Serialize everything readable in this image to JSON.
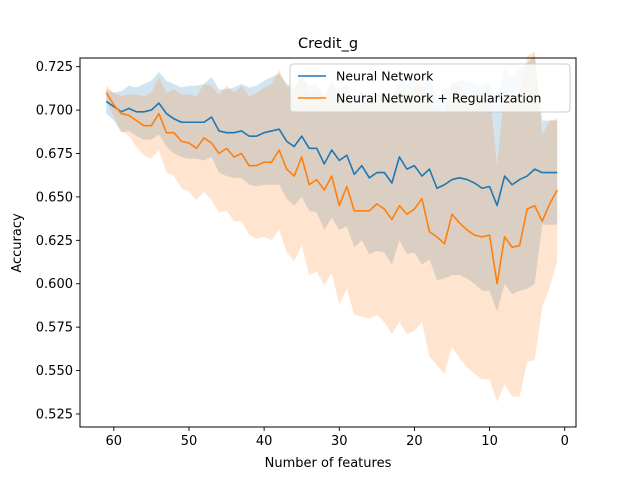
{
  "chart_data": {
    "type": "line",
    "title": "Credit_g",
    "xlabel": "Number of features",
    "ylabel": "Accuracy",
    "xlim": [
      64.5,
      -1.5
    ],
    "ylim": [
      0.5175,
      0.73
    ],
    "x_ticks": [
      60,
      50,
      40,
      30,
      20,
      10,
      0
    ],
    "y_ticks": [
      0.525,
      0.55,
      0.575,
      0.6,
      0.625,
      0.65,
      0.675,
      0.7,
      0.725
    ],
    "y_tick_labels": [
      "0.525",
      "0.550",
      "0.575",
      "0.600",
      "0.625",
      "0.650",
      "0.675",
      "0.700",
      "0.725"
    ],
    "legend_position": "upper-right",
    "grid": false,
    "x": [
      61,
      60,
      59,
      58,
      57,
      56,
      55,
      54,
      53,
      52,
      51,
      50,
      49,
      48,
      47,
      46,
      45,
      44,
      43,
      42,
      41,
      40,
      39,
      38,
      37,
      36,
      35,
      34,
      33,
      32,
      31,
      30,
      29,
      28,
      27,
      26,
      25,
      24,
      23,
      22,
      21,
      20,
      19,
      18,
      17,
      16,
      15,
      14,
      13,
      12,
      11,
      10,
      9,
      8,
      7,
      6,
      5,
      4,
      3,
      2,
      1
    ],
    "series": [
      {
        "name": "Neural Network",
        "color": "#1f77b4",
        "band_color": "#1f77b4",
        "values": [
          0.705,
          0.702,
          0.699,
          0.701,
          0.699,
          0.699,
          0.7,
          0.704,
          0.698,
          0.695,
          0.693,
          0.693,
          0.693,
          0.693,
          0.696,
          0.688,
          0.687,
          0.687,
          0.688,
          0.685,
          0.685,
          0.687,
          0.688,
          0.689,
          0.682,
          0.679,
          0.685,
          0.678,
          0.678,
          0.669,
          0.677,
          0.671,
          0.674,
          0.663,
          0.668,
          0.661,
          0.664,
          0.664,
          0.658,
          0.673,
          0.666,
          0.668,
          0.662,
          0.666,
          0.655,
          0.657,
          0.66,
          0.661,
          0.66,
          0.658,
          0.655,
          0.656,
          0.645,
          0.662,
          0.657,
          0.66,
          0.662,
          0.666,
          0.664,
          0.664,
          0.664
        ],
        "lower": [
          0.698,
          0.694,
          0.687,
          0.688,
          0.685,
          0.683,
          0.683,
          0.686,
          0.679,
          0.675,
          0.673,
          0.672,
          0.672,
          0.671,
          0.673,
          0.664,
          0.662,
          0.661,
          0.661,
          0.657,
          0.656,
          0.657,
          0.657,
          0.657,
          0.649,
          0.645,
          0.65,
          0.642,
          0.641,
          0.631,
          0.638,
          0.631,
          0.633,
          0.621,
          0.625,
          0.617,
          0.619,
          0.618,
          0.611,
          0.625,
          0.617,
          0.618,
          0.611,
          0.614,
          0.602,
          0.603,
          0.605,
          0.605,
          0.603,
          0.6,
          0.596,
          0.596,
          0.584,
          0.6,
          0.594,
          0.596,
          0.597,
          0.6,
          0.634,
          0.634,
          0.634
        ],
        "upper": [
          0.712,
          0.71,
          0.711,
          0.714,
          0.713,
          0.715,
          0.717,
          0.722,
          0.717,
          0.715,
          0.713,
          0.714,
          0.714,
          0.715,
          0.719,
          0.712,
          0.712,
          0.713,
          0.715,
          0.713,
          0.714,
          0.717,
          0.719,
          0.721,
          0.715,
          0.713,
          0.72,
          0.714,
          0.715,
          0.707,
          0.716,
          0.711,
          0.715,
          0.705,
          0.711,
          0.705,
          0.709,
          0.71,
          0.705,
          0.721,
          0.715,
          0.718,
          0.713,
          0.718,
          0.708,
          0.711,
          0.715,
          0.717,
          0.717,
          0.716,
          0.714,
          0.716,
          0.706,
          0.724,
          0.72,
          0.724,
          0.727,
          0.732,
          0.694,
          0.694,
          0.694
        ]
      },
      {
        "name": "Neural Network + Regularization",
        "color": "#ff7f0e",
        "band_color": "#ff7f0e",
        "values": [
          0.71,
          0.703,
          0.698,
          0.697,
          0.694,
          0.691,
          0.691,
          0.698,
          0.687,
          0.687,
          0.682,
          0.681,
          0.678,
          0.684,
          0.681,
          0.675,
          0.678,
          0.673,
          0.675,
          0.668,
          0.668,
          0.67,
          0.67,
          0.677,
          0.666,
          0.662,
          0.673,
          0.657,
          0.66,
          0.654,
          0.662,
          0.645,
          0.656,
          0.642,
          0.642,
          0.642,
          0.646,
          0.643,
          0.637,
          0.645,
          0.64,
          0.643,
          0.649,
          0.63,
          0.627,
          0.623,
          0.64,
          0.635,
          0.631,
          0.628,
          0.627,
          0.628,
          0.6,
          0.627,
          0.621,
          0.622,
          0.643,
          0.645,
          0.636,
          0.646,
          0.654
        ],
        "lower": [
          0.706,
          0.696,
          0.688,
          0.685,
          0.679,
          0.674,
          0.672,
          0.677,
          0.664,
          0.662,
          0.655,
          0.653,
          0.648,
          0.653,
          0.648,
          0.641,
          0.642,
          0.636,
          0.636,
          0.628,
          0.626,
          0.627,
          0.625,
          0.631,
          0.618,
          0.613,
          0.622,
          0.605,
          0.607,
          0.599,
          0.606,
          0.588,
          0.597,
          0.582,
          0.581,
          0.58,
          0.582,
          0.578,
          0.571,
          0.578,
          0.571,
          0.573,
          0.578,
          0.558,
          0.553,
          0.548,
          0.564,
          0.557,
          0.552,
          0.548,
          0.545,
          0.545,
          0.532,
          0.542,
          0.535,
          0.535,
          0.555,
          0.556,
          0.586,
          0.598,
          0.613
        ],
        "upper": [
          0.714,
          0.71,
          0.708,
          0.709,
          0.709,
          0.708,
          0.71,
          0.719,
          0.71,
          0.712,
          0.709,
          0.709,
          0.708,
          0.715,
          0.714,
          0.709,
          0.714,
          0.71,
          0.714,
          0.708,
          0.71,
          0.713,
          0.715,
          0.723,
          0.714,
          0.711,
          0.724,
          0.709,
          0.713,
          0.709,
          0.718,
          0.702,
          0.715,
          0.702,
          0.703,
          0.704,
          0.71,
          0.708,
          0.703,
          0.712,
          0.709,
          0.713,
          0.72,
          0.702,
          0.701,
          0.698,
          0.716,
          0.713,
          0.71,
          0.708,
          0.709,
          0.711,
          0.668,
          0.712,
          0.707,
          0.709,
          0.731,
          0.734,
          0.686,
          0.694,
          0.695
        ]
      }
    ]
  }
}
